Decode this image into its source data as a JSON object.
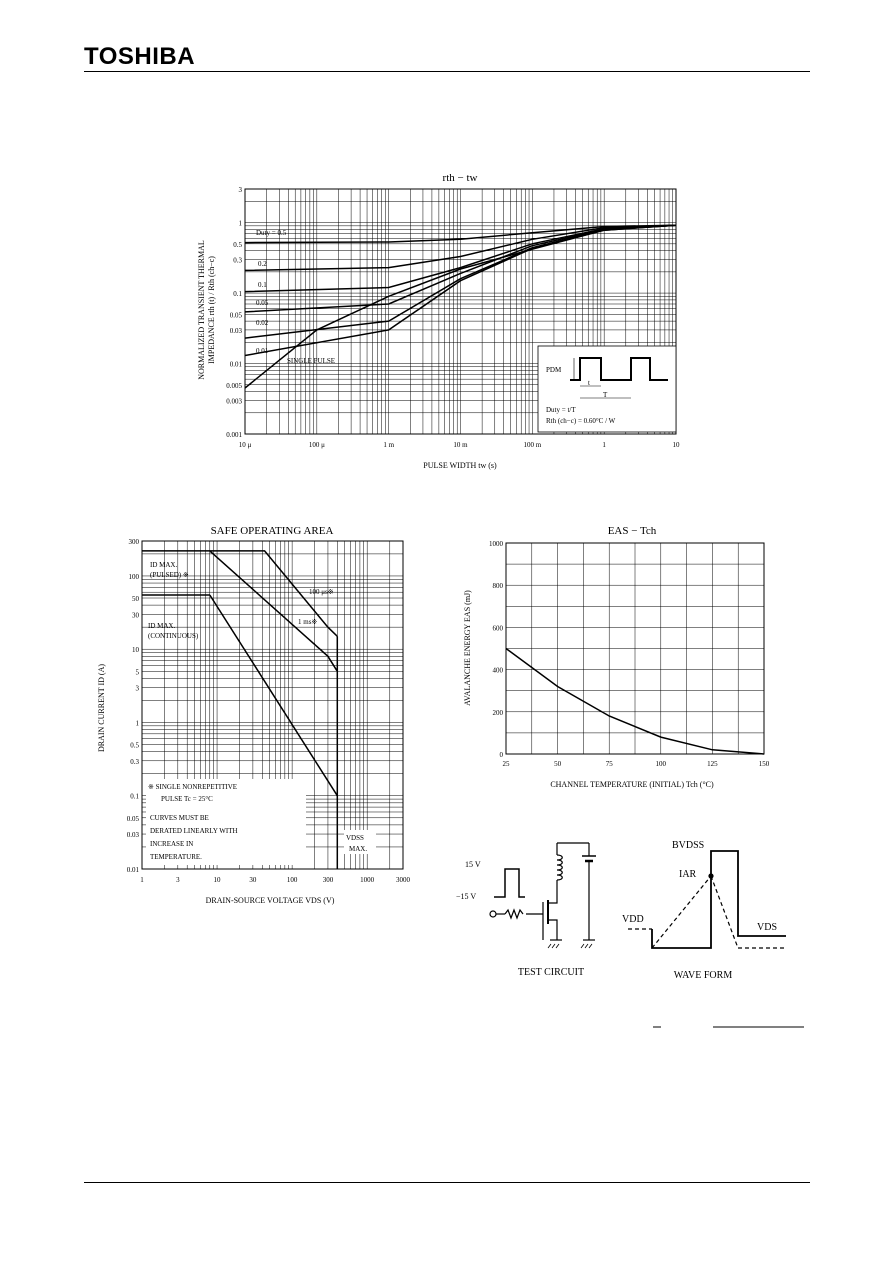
{
  "header": {
    "logo": "TOSHIBA"
  },
  "rth_chart": {
    "title": "rth − tw",
    "ylabel_line1": "NORMALIZED TRANSIENT THERMAL",
    "ylabel_line2": "IMPEDANCE   rth (t) / Rth (ch−c)",
    "xlabel": "PULSE WIDTH   tw   (s)",
    "yticks": [
      "3",
      "1",
      "0.5",
      "0.3",
      "0.1",
      "0.05",
      "0.03",
      "0.01",
      "0.005",
      "0.003",
      "0.001"
    ],
    "xticks": [
      "10 μ",
      "100 μ",
      "1 m",
      "10 m",
      "100 m",
      "1",
      "10"
    ],
    "curve_labels": [
      "Duty = 0.5",
      "0.2",
      "0.1",
      "0.05",
      "0.02",
      "0.01",
      "SINGLE PULSE"
    ],
    "inset": {
      "pdm": "PDM",
      "t": "t",
      "T": "T",
      "duty": "Duty = t/T",
      "rth": "Rth (ch−c) = 0.60°C / W"
    }
  },
  "soa_chart": {
    "title": "SAFE OPERATING AREA",
    "ylabel": "DRAIN CURRENT   ID   (A)",
    "xlabel": "DRAIN-SOURCE VOLTAGE   VDS   (V)",
    "yticks": [
      "300",
      "100",
      "50",
      "30",
      "10",
      "5",
      "3",
      "1",
      "0.5",
      "0.3",
      "0.1",
      "0.05",
      "0.03",
      "0.01"
    ],
    "xticks": [
      "1",
      "3",
      "10",
      "30",
      "100",
      "300",
      "1000",
      "3000"
    ],
    "labels": {
      "id_pulsed_1": "ID MAX.",
      "id_pulsed_2": "(PULSED) ※",
      "us100": "100 μs※",
      "ms1": "1 ms※",
      "id_cont_1": "ID MAX.",
      "id_cont_2": "(CONTINUOUS)",
      "note1": "※ SINGLE NONREPETITIVE",
      "note2": "PULSE  Tc = 25°C",
      "note3": "CURVES MUST BE",
      "note4": "DERATED LINEARLY WITH",
      "note5": "INCREASE IN",
      "note6": "TEMPERATURE.",
      "vdss1": "VDSS",
      "vdss2": "MAX."
    }
  },
  "eas_chart": {
    "title": "EAS − Tch",
    "ylabel": "AVALANCHE ENERGY   EAS   (mJ)",
    "xlabel": "CHANNEL TEMPERATURE (INITIAL)   Tch   (°C)",
    "yticks": [
      "1000",
      "800",
      "600",
      "400",
      "200",
      "0"
    ],
    "xticks": [
      "25",
      "50",
      "75",
      "100",
      "125",
      "150"
    ]
  },
  "chart_data": [
    {
      "type": "line",
      "title": "rth − tw",
      "xlabel": "PULSE WIDTH tw (s)",
      "ylabel": "NORMALIZED TRANSIENT THERMAL IMPEDANCE rth (t) / Rth (ch−c)",
      "xscale": "log",
      "yscale": "log",
      "xlim": [
        1e-05,
        10
      ],
      "ylim": [
        0.001,
        3
      ],
      "series": [
        {
          "name": "Duty = 0.5",
          "x": [
            1e-05,
            0.001,
            0.01,
            0.1,
            1,
            10
          ],
          "y": [
            0.52,
            0.53,
            0.58,
            0.72,
            0.88,
            0.92
          ]
        },
        {
          "name": "0.2",
          "x": [
            1e-05,
            0.001,
            0.01,
            0.1,
            1,
            10
          ],
          "y": [
            0.21,
            0.23,
            0.33,
            0.58,
            0.85,
            0.92
          ]
        },
        {
          "name": "0.1",
          "x": [
            1e-05,
            0.001,
            0.01,
            0.1,
            1,
            10
          ],
          "y": [
            0.105,
            0.12,
            0.23,
            0.5,
            0.82,
            0.92
          ]
        },
        {
          "name": "0.05",
          "x": [
            1e-05,
            0.001,
            0.01,
            0.1,
            1,
            10
          ],
          "y": [
            0.054,
            0.07,
            0.19,
            0.47,
            0.8,
            0.92
          ]
        },
        {
          "name": "0.02",
          "x": [
            1e-05,
            0.001,
            0.01,
            0.1,
            1,
            10
          ],
          "y": [
            0.023,
            0.04,
            0.16,
            0.44,
            0.79,
            0.92
          ]
        },
        {
          "name": "0.01",
          "x": [
            1e-05,
            0.001,
            0.01,
            0.1,
            1,
            10
          ],
          "y": [
            0.013,
            0.03,
            0.15,
            0.43,
            0.78,
            0.92
          ]
        },
        {
          "name": "SINGLE PULSE",
          "x": [
            1e-05,
            0.0001,
            0.001,
            0.01,
            0.1,
            1,
            10
          ],
          "y": [
            0.0045,
            0.03,
            0.09,
            0.22,
            0.42,
            0.78,
            0.92
          ]
        }
      ]
    },
    {
      "type": "line",
      "title": "SAFE OPERATING AREA",
      "xlabel": "DRAIN-SOURCE VOLTAGE VDS (V)",
      "ylabel": "DRAIN CURRENT ID (A)",
      "xscale": "log",
      "yscale": "log",
      "xlim": [
        1,
        3000
      ],
      "ylim": [
        0.01,
        300
      ],
      "series": [
        {
          "name": "ID MAX. (PULSED)",
          "x": [
            1,
            20
          ],
          "y": [
            220,
            220
          ]
        },
        {
          "name": "ID MAX. (CONTINUOUS)",
          "x": [
            1,
            8
          ],
          "y": [
            55,
            55
          ]
        },
        {
          "name": "100 μs",
          "x": [
            20,
            43,
            300,
            400
          ],
          "y": [
            220,
            220,
            20,
            15
          ]
        },
        {
          "name": "1 ms",
          "x": [
            8,
            300,
            400
          ],
          "y": [
            220,
            8,
            5
          ]
        },
        {
          "name": "DC",
          "x": [
            8,
            400
          ],
          "y": [
            55,
            0.1
          ]
        },
        {
          "name": "VDSS MAX.",
          "x": [
            400,
            400
          ],
          "y": [
            0.01,
            15
          ]
        }
      ]
    },
    {
      "type": "line",
      "title": "EAS − Tch",
      "xlabel": "CHANNEL TEMPERATURE (INITIAL) Tch (°C)",
      "ylabel": "AVALANCHE ENERGY EAS (mJ)",
      "xlim": [
        25,
        150
      ],
      "ylim": [
        0,
        1000
      ],
      "series": [
        {
          "x": [
            25,
            50,
            75,
            100,
            125,
            150
          ],
          "y": [
            500,
            320,
            180,
            80,
            20,
            0
          ]
        }
      ]
    }
  ],
  "test_circuit": {
    "label": "TEST CIRCUIT",
    "v_pos": "15 V",
    "v_neg": "−15 V"
  },
  "wave_form": {
    "label": "WAVE FORM",
    "bvdss": "BVDSS",
    "iar": "IAR",
    "vdd": "VDD",
    "vds": "VDS"
  }
}
